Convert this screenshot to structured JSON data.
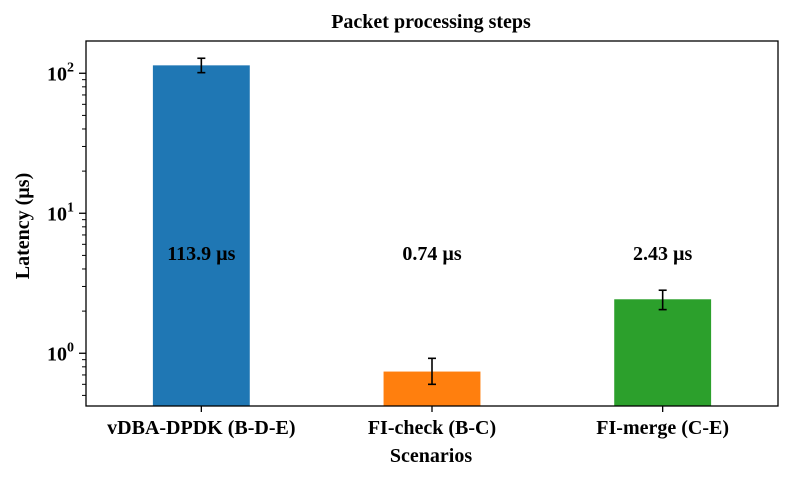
{
  "chart_data": {
    "type": "bar",
    "title": "Packet processing steps",
    "xlabel": "Scenarios",
    "ylabel": "Latency (µs)",
    "yscale": "log",
    "ylim": [
      0.42,
      170
    ],
    "y_ticks": [
      {
        "value": 1,
        "base": "10",
        "exp": "0"
      },
      {
        "value": 10,
        "base": "10",
        "exp": "1"
      },
      {
        "value": 100,
        "base": "10",
        "exp": "2"
      }
    ],
    "categories": [
      "vDBA-DPDK (B-D-E)",
      "FI-check (B-C)",
      "FI-merge (C-E)"
    ],
    "values": [
      113.9,
      0.74,
      2.43
    ],
    "error_low": [
      101,
      0.6,
      2.05
    ],
    "error_high": [
      128,
      0.92,
      2.82
    ],
    "data_labels": [
      "113.9 µs",
      "0.74 µs",
      "2.43 µs"
    ],
    "label_value": 5.2,
    "colors": [
      "#1f77b4",
      "#ff7f0e",
      "#2ca02c"
    ],
    "grid": false,
    "legend": "none"
  }
}
